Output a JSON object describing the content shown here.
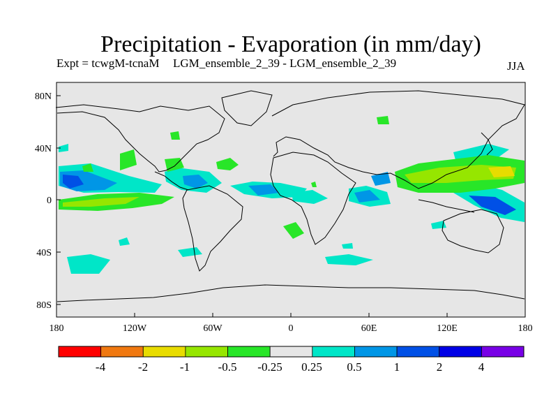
{
  "title": "Precipitation - Evaporation (in mm/day)",
  "subtitle_left": "Expt = tcwgM-tcnaM",
  "subtitle_center": "LGM_ensemble_2_39 - LGM_ensemble_2_39",
  "subtitle_right": "JJA",
  "map": {
    "background_color": "#e6e6e6",
    "lat_ticks": [
      "80N",
      "40N",
      "0",
      "40S",
      "80S"
    ],
    "lon_ticks": [
      "180",
      "120W",
      "60W",
      "0",
      "60E",
      "120E",
      "180"
    ]
  },
  "colorbar": {
    "colors": [
      "#ff0000",
      "#f07810",
      "#e8dc00",
      "#96e600",
      "#28e628",
      "#e6e6e6",
      "#00e6c8",
      "#0096e6",
      "#0050e6",
      "#0000e6",
      "#7800e6"
    ],
    "labels": [
      "-4",
      "-2",
      "-1",
      "-0.5",
      "-0.25",
      "0.25",
      "0.5",
      "1",
      "2",
      "4"
    ]
  }
}
